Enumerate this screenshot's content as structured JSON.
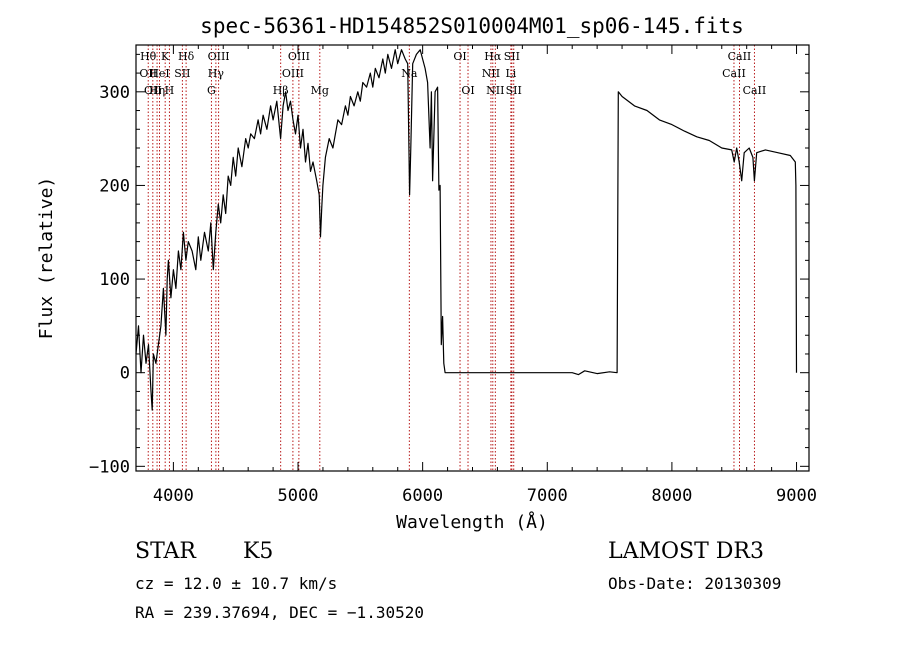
{
  "chart_data": {
    "type": "line",
    "title": "spec-56361-HD154852S010004M01_sp06-145.fits",
    "xlabel": "Wavelength (Å)",
    "ylabel": "Flux (relative)",
    "xlim": [
      3700,
      9100
    ],
    "ylim": [
      -105,
      350
    ],
    "x_ticks": [
      4000,
      5000,
      6000,
      7000,
      8000,
      9000
    ],
    "y_ticks": [
      -100,
      0,
      100,
      200,
      300
    ],
    "x_tick_labels": [
      "4000",
      "5000",
      "6000",
      "7000",
      "8000",
      "9000"
    ],
    "y_tick_labels": [
      "−100",
      "0",
      "100",
      "200",
      "300"
    ],
    "series": [
      {
        "name": "spectrum",
        "points": [
          [
            3700,
            20
          ],
          [
            3720,
            50
          ],
          [
            3740,
            0
          ],
          [
            3760,
            40
          ],
          [
            3780,
            10
          ],
          [
            3800,
            30
          ],
          [
            3820,
            -20
          ],
          [
            3830,
            -40
          ],
          [
            3840,
            20
          ],
          [
            3860,
            10
          ],
          [
            3880,
            30
          ],
          [
            3900,
            50
          ],
          [
            3920,
            90
          ],
          [
            3940,
            40
          ],
          [
            3950,
            100
          ],
          [
            3960,
            120
          ],
          [
            3980,
            80
          ],
          [
            4000,
            110
          ],
          [
            4020,
            90
          ],
          [
            4040,
            130
          ],
          [
            4060,
            110
          ],
          [
            4080,
            150
          ],
          [
            4100,
            120
          ],
          [
            4120,
            140
          ],
          [
            4150,
            130
          ],
          [
            4180,
            110
          ],
          [
            4200,
            145
          ],
          [
            4220,
            120
          ],
          [
            4250,
            150
          ],
          [
            4280,
            130
          ],
          [
            4300,
            160
          ],
          [
            4320,
            110
          ],
          [
            4340,
            150
          ],
          [
            4360,
            180
          ],
          [
            4380,
            160
          ],
          [
            4400,
            190
          ],
          [
            4420,
            170
          ],
          [
            4440,
            210
          ],
          [
            4460,
            200
          ],
          [
            4480,
            230
          ],
          [
            4500,
            210
          ],
          [
            4520,
            240
          ],
          [
            4550,
            220
          ],
          [
            4580,
            250
          ],
          [
            4600,
            240
          ],
          [
            4620,
            255
          ],
          [
            4650,
            250
          ],
          [
            4680,
            270
          ],
          [
            4700,
            255
          ],
          [
            4720,
            275
          ],
          [
            4750,
            260
          ],
          [
            4780,
            285
          ],
          [
            4800,
            270
          ],
          [
            4830,
            290
          ],
          [
            4860,
            250
          ],
          [
            4880,
            285
          ],
          [
            4900,
            300
          ],
          [
            4920,
            280
          ],
          [
            4940,
            290
          ],
          [
            4960,
            270
          ],
          [
            4980,
            255
          ],
          [
            5000,
            275
          ],
          [
            5020,
            240
          ],
          [
            5040,
            260
          ],
          [
            5060,
            225
          ],
          [
            5080,
            245
          ],
          [
            5100,
            215
          ],
          [
            5120,
            225
          ],
          [
            5150,
            205
          ],
          [
            5170,
            190
          ],
          [
            5180,
            145
          ],
          [
            5190,
            175
          ],
          [
            5200,
            200
          ],
          [
            5220,
            230
          ],
          [
            5250,
            250
          ],
          [
            5280,
            240
          ],
          [
            5300,
            255
          ],
          [
            5320,
            270
          ],
          [
            5350,
            265
          ],
          [
            5380,
            285
          ],
          [
            5400,
            275
          ],
          [
            5420,
            295
          ],
          [
            5450,
            285
          ],
          [
            5480,
            300
          ],
          [
            5500,
            290
          ],
          [
            5520,
            310
          ],
          [
            5550,
            305
          ],
          [
            5580,
            320
          ],
          [
            5600,
            305
          ],
          [
            5620,
            325
          ],
          [
            5650,
            315
          ],
          [
            5680,
            335
          ],
          [
            5700,
            320
          ],
          [
            5720,
            340
          ],
          [
            5750,
            325
          ],
          [
            5780,
            345
          ],
          [
            5800,
            330
          ],
          [
            5830,
            345
          ],
          [
            5860,
            335
          ],
          [
            5880,
            330
          ],
          [
            5895,
            190
          ],
          [
            5905,
            240
          ],
          [
            5920,
            330
          ],
          [
            5950,
            340
          ],
          [
            5980,
            345
          ],
          [
            6000,
            335
          ],
          [
            6020,
            325
          ],
          [
            6040,
            310
          ],
          [
            6060,
            240
          ],
          [
            6070,
            300
          ],
          [
            6080,
            205
          ],
          [
            6100,
            300
          ],
          [
            6120,
            305
          ],
          [
            6130,
            195
          ],
          [
            6140,
            200
          ],
          [
            6150,
            30
          ],
          [
            6160,
            60
          ],
          [
            6170,
            10
          ],
          [
            6180,
            0
          ],
          [
            6200,
            0
          ],
          [
            6500,
            0
          ],
          [
            7000,
            0
          ],
          [
            7200,
            0
          ],
          [
            7250,
            -2
          ],
          [
            7300,
            2
          ],
          [
            7400,
            -1
          ],
          [
            7500,
            1
          ],
          [
            7560,
            0
          ],
          [
            7570,
            300
          ],
          [
            7600,
            295
          ],
          [
            7700,
            285
          ],
          [
            7800,
            280
          ],
          [
            7900,
            270
          ],
          [
            8000,
            265
          ],
          [
            8100,
            258
          ],
          [
            8200,
            252
          ],
          [
            8300,
            248
          ],
          [
            8400,
            240
          ],
          [
            8480,
            238
          ],
          [
            8500,
            225
          ],
          [
            8520,
            240
          ],
          [
            8540,
            225
          ],
          [
            8560,
            205
          ],
          [
            8580,
            235
          ],
          [
            8620,
            240
          ],
          [
            8650,
            230
          ],
          [
            8662,
            205
          ],
          [
            8680,
            235
          ],
          [
            8750,
            238
          ],
          [
            8850,
            235
          ],
          [
            8950,
            232
          ],
          [
            8990,
            225
          ],
          [
            8995,
            200
          ],
          [
            9000,
            0
          ]
        ]
      }
    ],
    "line_markers": [
      {
        "wavelength": 3798,
        "labels": [
          {
            "text": "Hθ",
            "row": 0
          },
          {
            "text": "OII",
            "row": 1
          }
        ]
      },
      {
        "wavelength": 3835,
        "labels": [
          {
            "text": "OII",
            "row": 2
          }
        ]
      },
      {
        "wavelength": 3869,
        "labels": [
          {
            "text": "Hη",
            "row": 2
          }
        ]
      },
      {
        "wavelength": 3889,
        "labels": [
          {
            "text": "HeI",
            "row": 1
          }
        ]
      },
      {
        "wavelength": 3934,
        "labels": [
          {
            "text": "K",
            "row": 0
          }
        ]
      },
      {
        "wavelength": 3968,
        "labels": [
          {
            "text": "H",
            "row": 2
          }
        ]
      },
      {
        "wavelength": 4072,
        "labels": [
          {
            "text": "SII",
            "row": 1
          }
        ]
      },
      {
        "wavelength": 4102,
        "labels": [
          {
            "text": "Hδ",
            "row": 0
          }
        ]
      },
      {
        "wavelength": 4305,
        "labels": [
          {
            "text": "G",
            "row": 2
          }
        ]
      },
      {
        "wavelength": 4341,
        "labels": [
          {
            "text": "Hγ",
            "row": 1
          }
        ]
      },
      {
        "wavelength": 4363,
        "labels": [
          {
            "text": "OIII",
            "row": 0
          }
        ]
      },
      {
        "wavelength": 4861,
        "labels": [
          {
            "text": "Hβ",
            "row": 2
          }
        ]
      },
      {
        "wavelength": 4959,
        "labels": [
          {
            "text": "OIII",
            "row": 1
          }
        ]
      },
      {
        "wavelength": 5007,
        "labels": [
          {
            "text": "OIII",
            "row": 0
          }
        ]
      },
      {
        "wavelength": 5175,
        "labels": [
          {
            "text": "Mg",
            "row": 2
          }
        ]
      },
      {
        "wavelength": 5893,
        "labels": [
          {
            "text": "Na",
            "row": 1
          }
        ]
      },
      {
        "wavelength": 6300,
        "labels": [
          {
            "text": "OI",
            "row": 0
          }
        ]
      },
      {
        "wavelength": 6364,
        "labels": [
          {
            "text": "OI",
            "row": 2
          }
        ]
      },
      {
        "wavelength": 6548,
        "labels": [
          {
            "text": "NII",
            "row": 1
          }
        ]
      },
      {
        "wavelength": 6563,
        "labels": [
          {
            "text": "Hα",
            "row": 0
          }
        ]
      },
      {
        "wavelength": 6583,
        "labels": [
          {
            "text": "NII",
            "row": 2
          }
        ]
      },
      {
        "wavelength": 6708,
        "labels": [
          {
            "text": "Li",
            "row": 1
          }
        ]
      },
      {
        "wavelength": 6716,
        "labels": [
          {
            "text": "SII",
            "row": 0
          }
        ]
      },
      {
        "wavelength": 6731,
        "labels": [
          {
            "text": "SII",
            "row": 2
          }
        ]
      },
      {
        "wavelength": 8498,
        "labels": [
          {
            "text": "CaII",
            "row": 1
          }
        ]
      },
      {
        "wavelength": 8542,
        "labels": [
          {
            "text": "CaII",
            "row": 0
          }
        ]
      },
      {
        "wavelength": 8662,
        "labels": [
          {
            "text": "CaII",
            "row": 2
          }
        ]
      }
    ],
    "colors": {
      "line": "#000000",
      "marker": "#b00000",
      "axis": "#000000"
    }
  },
  "info": {
    "class_label": "STAR",
    "subclass": "K5",
    "survey": "LAMOST DR3",
    "cz": "cz = 12.0 ± 10.7 km/s",
    "obs_date": "Obs-Date: 20130309",
    "radec": "RA = 239.37694, DEC =  −1.30520"
  }
}
